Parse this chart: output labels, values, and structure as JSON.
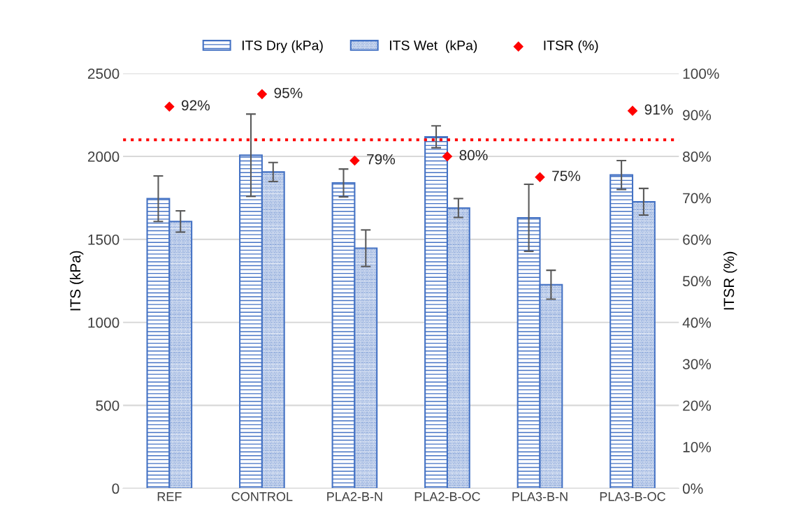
{
  "chart_data": {
    "type": "bar",
    "ylabel": "ITS (kPa)",
    "y2label": "ITSR (%)",
    "categories": [
      "REF",
      "CONTROL",
      "PLA2-B-N",
      "PLA2-B-OC",
      "PLA3-B-N",
      "PLA3-B-OC"
    ],
    "series": [
      {
        "name": "ITS Dry (kPa)",
        "color": "#4472c4",
        "values": [
          1745,
          2007,
          1840,
          2118,
          1630,
          1888
        ],
        "errors": [
          137,
          248,
          84,
          66,
          202,
          87
        ]
      },
      {
        "name": "ITS Wet  (kPa)",
        "color": "#4472c4",
        "values": [
          1608,
          1906,
          1447,
          1689,
          1227,
          1727
        ],
        "errors": [
          64,
          57,
          110,
          57,
          87,
          80
        ]
      },
      {
        "name": "ITSR (%)",
        "type": "scatter",
        "axis": "y2",
        "color": "#ff0000",
        "marker": "diamond",
        "values": [
          92,
          95,
          79,
          80,
          75,
          91
        ],
        "value_labels": [
          "92%",
          "95%",
          "79%",
          "80%",
          "75%",
          "91%"
        ]
      }
    ],
    "ylim": [
      0,
      2500
    ],
    "yticks": [
      0,
      500,
      1000,
      1500,
      2000,
      2500
    ],
    "y2lim": [
      0,
      100
    ],
    "y2ticks": [
      {
        "value": 0,
        "label": "0%"
      },
      {
        "value": 10,
        "label": "10%"
      },
      {
        "value": 20,
        "label": "20%"
      },
      {
        "value": 30,
        "label": "30%"
      },
      {
        "value": 40,
        "label": "40%"
      },
      {
        "value": 50,
        "label": "50%"
      },
      {
        "value": 60,
        "label": "60%"
      },
      {
        "value": 70,
        "label": "70%"
      },
      {
        "value": 80,
        "label": "80%"
      },
      {
        "value": 90,
        "label": "90%"
      },
      {
        "value": 100,
        "label": "100%"
      }
    ],
    "ref_lines": [
      {
        "axis": "y2",
        "value": 84,
        "color": "#ff0000",
        "line_style": "dotted"
      }
    ],
    "grid": "y",
    "legend": "top"
  }
}
